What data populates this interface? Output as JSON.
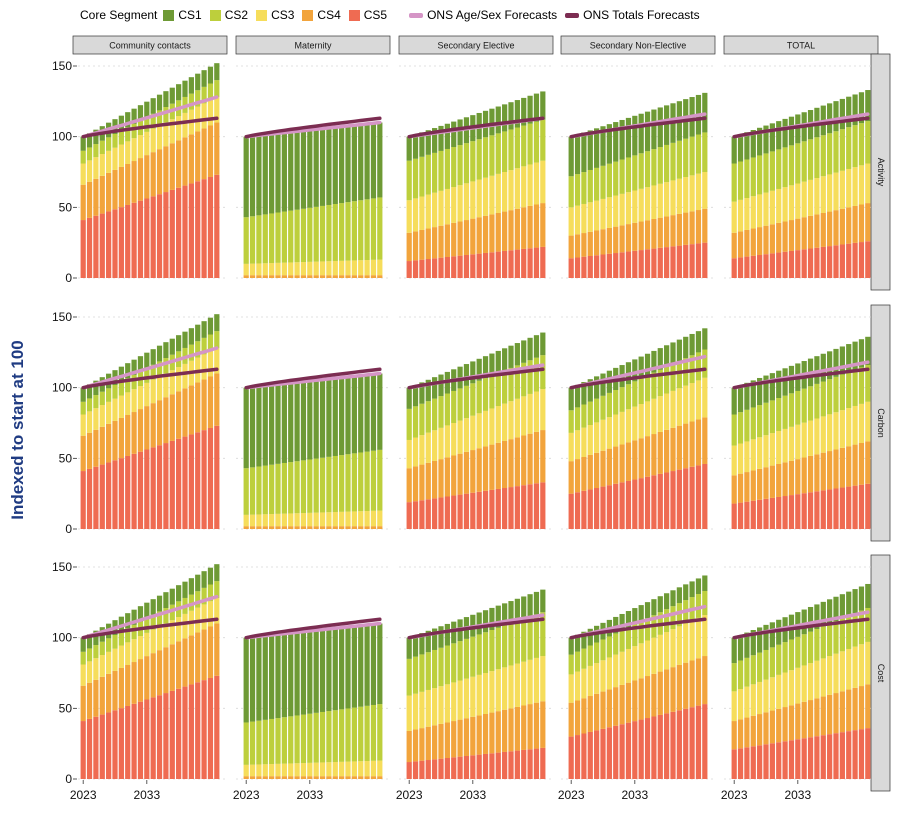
{
  "legend": {
    "title": "Core Segment",
    "segments": [
      {
        "label": "CS1",
        "color": "#6e9a35"
      },
      {
        "label": "CS2",
        "color": "#bdcf3c"
      },
      {
        "label": "CS3",
        "color": "#f6dd5b"
      },
      {
        "label": "CS4",
        "color": "#f2a43c"
      },
      {
        "label": "CS5",
        "color": "#ef6b52"
      }
    ],
    "lines": [
      {
        "label": "ONS Age/Sex Forecasts",
        "color": "#d595c6"
      },
      {
        "label": "ONS Totals Forecasts",
        "color": "#7c2d52"
      }
    ]
  },
  "y_axis_title": "Indexed to start at 100",
  "chart_data": {
    "type": "bar",
    "stacked": true,
    "facet_columns": [
      "Community contacts",
      "Maternity",
      "Secondary Elective",
      "Secondary Non-Elective",
      "TOTAL"
    ],
    "facet_rows": [
      "Activity",
      "Carbon",
      "Cost"
    ],
    "x": {
      "start_year": 2023,
      "end_year": 2044,
      "tick_labels": [
        "2023",
        "2033"
      ],
      "tick_values": [
        2023,
        2033
      ]
    },
    "y": {
      "ylim": [
        0,
        150
      ],
      "tick_values": [
        0,
        50,
        100,
        150
      ],
      "tick_labels": [
        "0",
        "50",
        "100",
        "150"
      ]
    },
    "series_order": [
      "CS5",
      "CS4",
      "CS3",
      "CS2",
      "CS1"
    ],
    "panels": [
      {
        "row": "Activity",
        "col": "Community contacts",
        "start": [
          41,
          25,
          15,
          9,
          10
        ],
        "end": [
          73,
          37,
          18,
          12,
          12
        ],
        "age_sex_end": 128,
        "totals_end": 113
      },
      {
        "row": "Activity",
        "col": "Maternity",
        "start": [
          2,
          8,
          33,
          57
        ],
        "end": [
          2,
          11,
          44,
          53
        ],
        "age_sex_end": 110,
        "totals_end": 113,
        "series_order": [
          "CS4",
          "CS3",
          "CS2",
          "CS1"
        ]
      },
      {
        "row": "Activity",
        "col": "Secondary Elective",
        "start": [
          12,
          20,
          23,
          28,
          17
        ],
        "end": [
          22,
          31,
          30,
          29,
          20
        ],
        "age_sex_end": 113,
        "totals_end": 113
      },
      {
        "row": "Activity",
        "col": "Secondary Non-Elective",
        "start": [
          14,
          16,
          20,
          22,
          28
        ],
        "end": [
          25,
          24,
          26,
          28,
          28
        ],
        "age_sex_end": 116,
        "totals_end": 113
      },
      {
        "row": "Activity",
        "col": "TOTAL",
        "start": [
          14,
          18,
          22,
          27,
          19
        ],
        "end": [
          26,
          27,
          28,
          30,
          22
        ],
        "age_sex_end": 116,
        "totals_end": 113
      },
      {
        "row": "Carbon",
        "col": "Community contacts",
        "start": [
          41,
          25,
          15,
          9,
          10
        ],
        "end": [
          73,
          37,
          18,
          12,
          12
        ],
        "age_sex_end": 128,
        "totals_end": 113
      },
      {
        "row": "Carbon",
        "col": "Maternity",
        "start": [
          2,
          8,
          33,
          57
        ],
        "end": [
          2,
          11,
          43,
          54
        ],
        "age_sex_end": 110,
        "totals_end": 113,
        "series_order": [
          "CS4",
          "CS3",
          "CS2",
          "CS1"
        ]
      },
      {
        "row": "Carbon",
        "col": "Secondary Elective",
        "start": [
          19,
          24,
          20,
          22,
          15
        ],
        "end": [
          33,
          37,
          29,
          24,
          16
        ],
        "age_sex_end": 116,
        "totals_end": 113
      },
      {
        "row": "Carbon",
        "col": "Secondary Non-Elective",
        "start": [
          25,
          23,
          20,
          16,
          16
        ],
        "end": [
          46,
          33,
          28,
          20,
          15
        ],
        "age_sex_end": 122,
        "totals_end": 113
      },
      {
        "row": "Carbon",
        "col": "TOTAL",
        "start": [
          18,
          20,
          21,
          22,
          19
        ],
        "end": [
          32,
          30,
          28,
          26,
          20
        ],
        "age_sex_end": 118,
        "totals_end": 113
      },
      {
        "row": "Cost",
        "col": "Community contacts",
        "start": [
          41,
          25,
          15,
          9,
          10
        ],
        "end": [
          73,
          37,
          18,
          12,
          12
        ],
        "age_sex_end": 129,
        "totals_end": 113
      },
      {
        "row": "Cost",
        "col": "Maternity",
        "start": [
          2,
          8,
          30,
          60
        ],
        "end": [
          2,
          11,
          40,
          57
        ],
        "age_sex_end": 110,
        "totals_end": 113,
        "series_order": [
          "CS4",
          "CS3",
          "CS2",
          "CS1"
        ]
      },
      {
        "row": "Cost",
        "col": "Secondary Elective",
        "start": [
          12,
          22,
          25,
          26,
          15
        ],
        "end": [
          22,
          33,
          32,
          31,
          16
        ],
        "age_sex_end": 116,
        "totals_end": 113
      },
      {
        "row": "Cost",
        "col": "Secondary Non-Elective",
        "start": [
          30,
          24,
          20,
          14,
          12
        ],
        "end": [
          53,
          34,
          29,
          17,
          11
        ],
        "age_sex_end": 122,
        "totals_end": 113
      },
      {
        "row": "Cost",
        "col": "TOTAL",
        "start": [
          21,
          20,
          21,
          20,
          18
        ],
        "end": [
          36,
          31,
          30,
          24,
          17
        ],
        "age_sex_end": 118,
        "totals_end": 113
      }
    ],
    "lines_start": 100
  }
}
